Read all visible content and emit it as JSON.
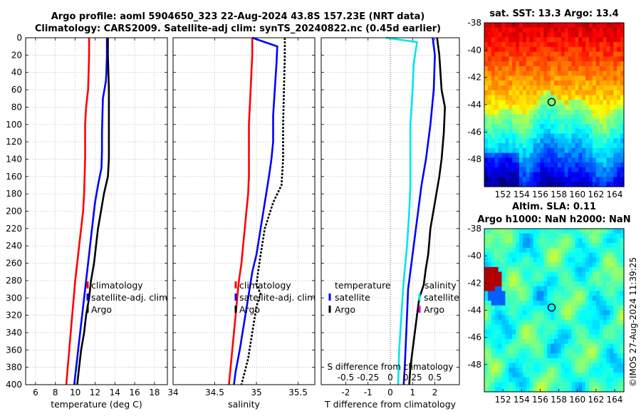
{
  "header": {
    "title_line1": "Argo profile: aoml 5904650_323 22-Aug-2024 43.8S 157.23E (NRT data)",
    "title_line2": "Climatology: CARS2009. Satellite-adj clim: synTS_20240822.nc (0.45d earlier)"
  },
  "credit": "©IMOS 27-Aug-2024 11:39:25",
  "colors": {
    "climatology": "#ff0000",
    "satellite": "#0000ff",
    "argo": "#000000",
    "t_diff_satellite": "#0000ff",
    "s_diff_satellite": "#00e5ee",
    "s_diff_argo": "#cc00cc",
    "grid": "#a0a0a0"
  },
  "chart_data": [
    {
      "id": "temperature",
      "type": "line",
      "xlabel": "temperature (deg C)",
      "xlim": [
        5,
        19.3
      ],
      "xticks": [
        6,
        8,
        10,
        12,
        14,
        16,
        18
      ],
      "ylim": [
        0,
        400
      ],
      "yticks": [
        0,
        20,
        40,
        60,
        80,
        100,
        120,
        140,
        160,
        180,
        200,
        220,
        240,
        260,
        280,
        300,
        320,
        340,
        360,
        380,
        400
      ],
      "series": [
        {
          "name": "climatology",
          "color": "#ff0000",
          "dash": "",
          "points": [
            [
              11.4,
              0
            ],
            [
              11.4,
              20
            ],
            [
              11.35,
              40
            ],
            [
              11.3,
              60
            ],
            [
              11.1,
              80
            ],
            [
              11.0,
              100
            ],
            [
              11.0,
              120
            ],
            [
              11.0,
              140
            ],
            [
              10.95,
              160
            ],
            [
              10.9,
              180
            ],
            [
              10.8,
              200
            ],
            [
              10.6,
              220
            ],
            [
              10.4,
              240
            ],
            [
              10.2,
              260
            ],
            [
              10.0,
              280
            ],
            [
              9.85,
              300
            ],
            [
              9.7,
              320
            ],
            [
              9.55,
              340
            ],
            [
              9.4,
              360
            ],
            [
              9.25,
              380
            ],
            [
              9.1,
              400
            ]
          ]
        },
        {
          "name": "satellite-adj. clim",
          "color": "#0000ff",
          "dash": "",
          "points": [
            [
              13.2,
              0
            ],
            [
              13.2,
              20
            ],
            [
              13.15,
              40
            ],
            [
              13.1,
              50
            ],
            [
              12.8,
              70
            ],
            [
              12.75,
              90
            ],
            [
              12.7,
              110
            ],
            [
              12.7,
              130
            ],
            [
              12.65,
              150
            ],
            [
              12.3,
              170
            ],
            [
              12.0,
              190
            ],
            [
              11.8,
              210
            ],
            [
              11.6,
              230
            ],
            [
              11.4,
              250
            ],
            [
              11.2,
              270
            ],
            [
              11.0,
              290
            ],
            [
              10.8,
              310
            ],
            [
              10.6,
              330
            ],
            [
              10.4,
              350
            ],
            [
              10.2,
              370
            ],
            [
              10.0,
              390
            ],
            [
              9.9,
              400
            ]
          ]
        },
        {
          "name": "Argo",
          "color": "#000000",
          "dash": "",
          "points": [
            [
              13.3,
              0
            ],
            [
              13.3,
              20
            ],
            [
              13.35,
              40
            ],
            [
              13.4,
              60
            ],
            [
              13.4,
              80
            ],
            [
              13.4,
              100
            ],
            [
              13.4,
              120
            ],
            [
              13.4,
              140
            ],
            [
              13.3,
              160
            ],
            [
              13.1,
              170
            ],
            [
              12.9,
              180
            ],
            [
              12.6,
              200
            ],
            [
              12.3,
              220
            ],
            [
              12.1,
              240
            ],
            [
              11.9,
              260
            ],
            [
              11.6,
              280
            ],
            [
              11.4,
              300
            ],
            [
              11.1,
              320
            ],
            [
              10.9,
              340
            ],
            [
              10.6,
              360
            ],
            [
              10.4,
              380
            ],
            [
              10.2,
              400
            ]
          ]
        }
      ],
      "legend": [
        "climatology",
        "satellite-adj. clim",
        "Argo"
      ]
    },
    {
      "id": "salinity",
      "type": "line",
      "xlabel": "salinity",
      "xlim": [
        34,
        35.7
      ],
      "xticks": [
        34,
        34.5,
        35,
        35.5
      ],
      "xticklabels": [
        "34",
        "34.5",
        "35",
        "35.5"
      ],
      "ylim": [
        0,
        400
      ],
      "series": [
        {
          "name": "climatology",
          "color": "#ff0000",
          "dash": "",
          "points": [
            [
              34.95,
              0
            ],
            [
              34.95,
              20
            ],
            [
              34.94,
              40
            ],
            [
              34.93,
              60
            ],
            [
              34.92,
              80
            ],
            [
              34.91,
              100
            ],
            [
              34.91,
              120
            ],
            [
              34.91,
              140
            ],
            [
              34.91,
              160
            ],
            [
              34.9,
              180
            ],
            [
              34.88,
              200
            ],
            [
              34.86,
              220
            ],
            [
              34.84,
              240
            ],
            [
              34.82,
              260
            ],
            [
              34.79,
              280
            ],
            [
              34.77,
              300
            ],
            [
              34.75,
              320
            ],
            [
              34.73,
              340
            ],
            [
              34.71,
              360
            ],
            [
              34.69,
              380
            ],
            [
              34.67,
              400
            ]
          ]
        },
        {
          "name": "satellite-adj. clim",
          "color": "#0000ff",
          "dash": "",
          "points": [
            [
              34.95,
              0
            ],
            [
              35.1,
              5
            ],
            [
              35.25,
              10
            ],
            [
              35.24,
              30
            ],
            [
              35.22,
              60
            ],
            [
              35.2,
              90
            ],
            [
              35.2,
              120
            ],
            [
              35.18,
              140
            ],
            [
              35.15,
              160
            ],
            [
              35.1,
              190
            ],
            [
              35.05,
              220
            ],
            [
              35.0,
              250
            ],
            [
              34.95,
              270
            ],
            [
              34.9,
              300
            ],
            [
              34.85,
              330
            ],
            [
              34.8,
              360
            ],
            [
              34.75,
              385
            ],
            [
              34.73,
              400
            ]
          ]
        },
        {
          "name": "Argo",
          "color": "#000000",
          "dash": "3,2",
          "points": [
            [
              35.34,
              0
            ],
            [
              35.34,
              20
            ],
            [
              35.33,
              60
            ],
            [
              35.32,
              100
            ],
            [
              35.32,
              140
            ],
            [
              35.3,
              170
            ],
            [
              35.2,
              190
            ],
            [
              35.1,
              220
            ],
            [
              35.05,
              250
            ],
            [
              35.02,
              270
            ],
            [
              35.0,
              285
            ],
            [
              35.05,
              295
            ],
            [
              35.0,
              310
            ],
            [
              34.95,
              340
            ],
            [
              34.9,
              370
            ],
            [
              34.82,
              400
            ]
          ]
        }
      ],
      "legend": [
        "climatology",
        "satellite-adj. clim",
        "Argo"
      ]
    },
    {
      "id": "difference",
      "type": "line",
      "xlabel": "T difference from climatology",
      "xlim": [
        -3.1,
        3.1
      ],
      "xticks": [
        -2,
        -1,
        0,
        1,
        2
      ],
      "top_axis_label": "S difference from climatology",
      "top_xticks": [
        -0.5,
        -0.25,
        0,
        0.25,
        0.5
      ],
      "top_xticklabels": [
        "-0.5",
        "-0.25",
        "0",
        "0.25",
        "0.5"
      ],
      "ylim": [
        0,
        400
      ],
      "series": [
        {
          "name": "zero reference",
          "color": "#555555",
          "dash": "1,2",
          "points": [
            [
              0,
              0
            ],
            [
              0,
              400
            ]
          ]
        },
        {
          "name": "satellite (T)",
          "color": "#0000ff",
          "dash": "",
          "points": [
            [
              1.9,
              0
            ],
            [
              2.0,
              20
            ],
            [
              1.95,
              60
            ],
            [
              1.8,
              100
            ],
            [
              1.6,
              140
            ],
            [
              1.4,
              170
            ],
            [
              1.25,
              200
            ],
            [
              1.1,
              230
            ],
            [
              0.95,
              260
            ],
            [
              0.8,
              290
            ],
            [
              0.75,
              320
            ],
            [
              0.7,
              350
            ],
            [
              0.65,
              380
            ],
            [
              0.6,
              400
            ]
          ]
        },
        {
          "name": "Argo (T)",
          "color": "#000000",
          "dash": "",
          "points": [
            [
              2.1,
              0
            ],
            [
              2.2,
              20
            ],
            [
              2.3,
              60
            ],
            [
              2.45,
              80
            ],
            [
              2.4,
              110
            ],
            [
              2.3,
              140
            ],
            [
              2.2,
              160
            ],
            [
              2.0,
              190
            ],
            [
              1.8,
              220
            ],
            [
              1.7,
              250
            ],
            [
              1.6,
              265
            ],
            [
              1.5,
              285
            ],
            [
              1.3,
              300
            ],
            [
              1.2,
              320
            ],
            [
              1.1,
              340
            ],
            [
              1.0,
              360
            ],
            [
              0.9,
              380
            ],
            [
              0.85,
              400
            ]
          ]
        },
        {
          "name": "satellite (S)",
          "color": "#00e5ee",
          "dash": "",
          "points": [
            [
              -0.2,
              0
            ],
            [
              1.2,
              5
            ],
            [
              1.05,
              30
            ],
            [
              1.0,
              60
            ],
            [
              0.9,
              100
            ],
            [
              0.9,
              140
            ],
            [
              0.9,
              170
            ],
            [
              0.85,
              200
            ],
            [
              0.75,
              240
            ],
            [
              0.6,
              280
            ],
            [
              0.5,
              320
            ],
            [
              0.4,
              360
            ],
            [
              0.35,
              400
            ]
          ]
        }
      ],
      "legend_left_header": "temperature",
      "legend_right_header": "salinity",
      "legend_left": [
        "satellite",
        "Argo"
      ],
      "legend_right": [
        "satellite",
        "Argo"
      ]
    },
    {
      "id": "sst_map",
      "type": "heatmap",
      "title": "sat. SST: 13.3 Argo: 13.4",
      "xlim": [
        150,
        165
      ],
      "xticks": [
        152,
        154,
        156,
        158,
        160,
        162,
        164
      ],
      "ylim": [
        -50,
        -38
      ],
      "yticks": [
        -38,
        -40,
        -42,
        -44,
        -46,
        -48
      ],
      "marker": [
        157.23,
        -43.8
      ],
      "pattern": "sst"
    },
    {
      "id": "sla_map",
      "type": "heatmap",
      "title_line1": "Altim. SLA: 0.11",
      "title_line2": "Argo h1000: NaN h2000: NaN",
      "xlim": [
        150,
        165
      ],
      "xticks": [
        152,
        154,
        156,
        158,
        160,
        162,
        164
      ],
      "ylim": [
        -50,
        -38
      ],
      "yticks": [
        -38,
        -40,
        -42,
        -44,
        -46,
        -48
      ],
      "marker": [
        157.23,
        -43.8
      ],
      "pattern": "sla"
    }
  ]
}
